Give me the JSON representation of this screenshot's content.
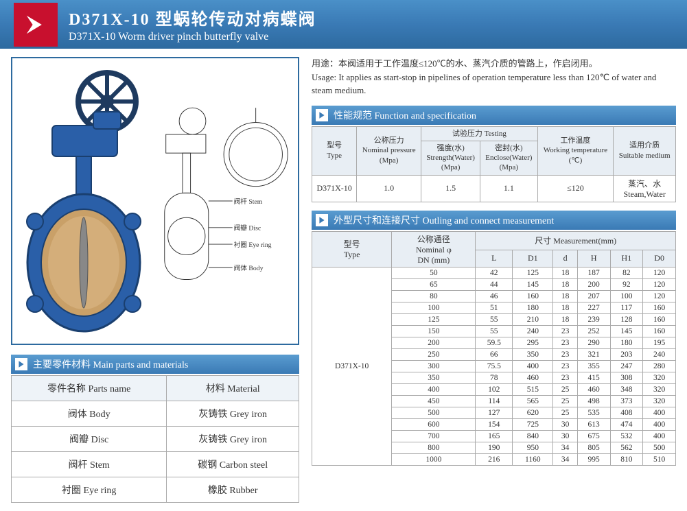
{
  "header": {
    "title_cn": "D371X-10 型蜗轮传动对病蝶阀",
    "title_en": "D371X-10 Worm driver pinch butterfly valve"
  },
  "usage": {
    "cn": "用途：本阀适用于工作温度≤120℃的水、蒸汽介质的管路上，作启闭用。",
    "en": "Usage: It applies as start-stop in pipelines of operation temperature less than 120℃ of water and steam medium."
  },
  "diagram_labels": {
    "stem": "阀杆 Stem",
    "disc": "阀瓣 Disc",
    "eyering": "衬圈 Eye ring",
    "body": "阀体 Body"
  },
  "parts_section": {
    "title": "主要零件材料  Main parts and materials",
    "headers": {
      "name": "零件名称  Parts name",
      "material": "材料  Material"
    },
    "rows": [
      {
        "name": "阀体  Body",
        "material": "灰铸铁  Grey iron"
      },
      {
        "name": "阀瓣  Disc",
        "material": "灰铸铁  Grey iron"
      },
      {
        "name": "阀杆  Stem",
        "material": "碳钢  Carbon steel"
      },
      {
        "name": "衬圈  Eye ring",
        "material": "橡胶  Rubber"
      }
    ]
  },
  "spec_section": {
    "title": "性能规范  Function and specification",
    "headers": {
      "type": "型号\nType",
      "nominal": "公称压力\nNominal pressure\n(Mpa)",
      "testing": "试验压力 Testing",
      "strength": "强度(水)\nStrength(Water)\n(Mpa)",
      "enclose": "密封(水)\nEnclose(Water)\n(Mpa)",
      "temp": "工作温度\nWorking temperature\n(℃)",
      "medium": "适用介质\nSuitable medium"
    },
    "row": {
      "type": "D371X-10",
      "nominal": "1.0",
      "strength": "1.5",
      "enclose": "1.1",
      "temp": "≤120",
      "medium": "蒸汽、水\nSteam,Water"
    }
  },
  "meas_section": {
    "title": "外型尺寸和连接尺寸  Outling and connect measurement",
    "headers": {
      "type": "型号\nType",
      "dn": "公称通径\nNominal φ\nDN (mm)",
      "meas": "尺寸  Measurement(mm)",
      "cols": [
        "L",
        "D1",
        "d",
        "H",
        "H1",
        "D0"
      ]
    },
    "type_value": "D371X-10",
    "rows": [
      [
        50,
        42,
        125,
        18,
        187,
        82,
        120
      ],
      [
        65,
        44,
        145,
        18,
        200,
        92,
        120
      ],
      [
        80,
        46,
        160,
        18,
        207,
        100,
        120
      ],
      [
        100,
        51,
        180,
        18,
        227,
        117,
        160
      ],
      [
        125,
        55,
        210,
        18,
        239,
        128,
        160
      ],
      [
        150,
        55,
        240,
        23,
        252,
        145,
        160
      ],
      [
        200,
        59.5,
        295,
        23,
        290,
        180,
        195
      ],
      [
        250,
        66,
        350,
        23,
        321,
        203,
        240
      ],
      [
        300,
        75.5,
        400,
        23,
        355,
        247,
        280
      ],
      [
        350,
        78,
        460,
        23,
        415,
        308,
        320
      ],
      [
        400,
        102,
        515,
        25,
        460,
        348,
        320
      ],
      [
        450,
        114,
        565,
        25,
        498,
        373,
        320
      ],
      [
        500,
        127,
        620,
        25,
        535,
        408,
        400
      ],
      [
        600,
        154,
        725,
        30,
        613,
        474,
        400
      ],
      [
        700,
        165,
        840,
        30,
        675,
        532,
        400
      ],
      [
        800,
        190,
        950,
        34,
        805,
        562,
        500
      ],
      [
        1000,
        216,
        1160,
        34,
        995,
        810,
        510
      ]
    ]
  },
  "colors": {
    "header_grad_top": "#4a90c8",
    "header_grad_bot": "#2d6a9f",
    "badge": "#c8102e",
    "border": "#aaa",
    "th_bg": "#e8eef4",
    "valve_blue": "#2a5fa8"
  }
}
